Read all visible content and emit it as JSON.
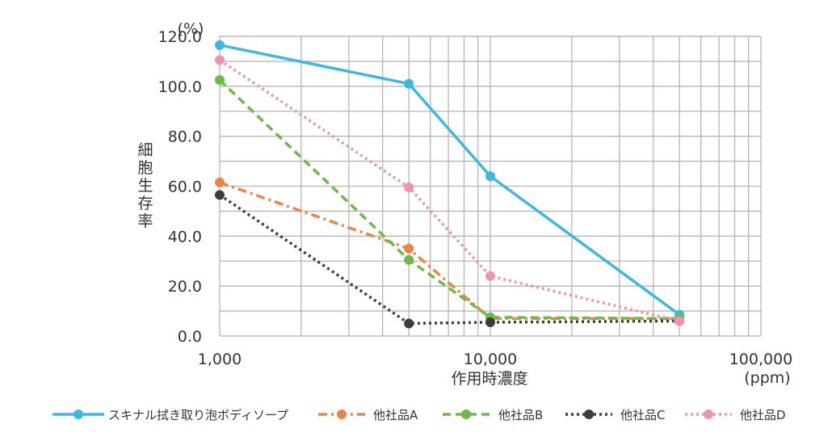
{
  "chart_data": {
    "type": "line",
    "x_scale": "log",
    "xlim": [
      1000,
      100000
    ],
    "ylim": [
      0,
      120
    ],
    "y_unit": "(%)",
    "x_unit": "(ppm)",
    "xlabel": "作用時濃度",
    "ylabel": "細胞生存率",
    "grid": true,
    "legend_position": "bottom",
    "x_tick_labels": [
      {
        "value": 1000,
        "label": "1,000"
      },
      {
        "value": 10000,
        "label": "10,000"
      },
      {
        "value": 100000,
        "label": "100,000"
      }
    ],
    "y_tick_labels": [
      {
        "value": 0,
        "label": "0.0"
      },
      {
        "value": 20,
        "label": "20.0"
      },
      {
        "value": 40,
        "label": "40.0"
      },
      {
        "value": 60,
        "label": "60.0"
      },
      {
        "value": 80,
        "label": "80.0"
      },
      {
        "value": 100,
        "label": "100.0"
      },
      {
        "value": 120,
        "label": "120.0"
      }
    ],
    "x": [
      1000,
      5000,
      10000,
      50000
    ],
    "series": [
      {
        "name": "スキナル拭き取り泡ボディソープ",
        "color": "#3bb9e3",
        "dash": "solid",
        "values": [
          116.5,
          101,
          64,
          8.5
        ]
      },
      {
        "name": "他社品A",
        "color": "#ed8447",
        "dash": "dashdot",
        "values": [
          61.5,
          35,
          7,
          7
        ]
      },
      {
        "name": "他社品B",
        "color": "#6dbb45",
        "dash": "dash",
        "values": [
          102.5,
          30.5,
          7.5,
          7
        ]
      },
      {
        "name": "他社品C",
        "color": "#3d3d3d",
        "dash": "dot",
        "values": [
          56.5,
          5,
          5.5,
          6
        ]
      },
      {
        "name": "他社品D",
        "color": "#ee93b2",
        "dash": "dot",
        "values": [
          110.5,
          59.5,
          24,
          6
        ]
      }
    ]
  }
}
